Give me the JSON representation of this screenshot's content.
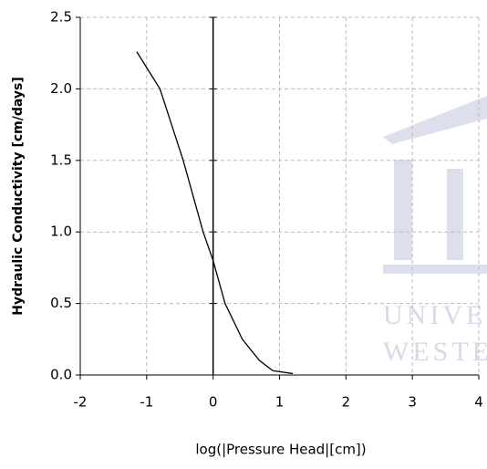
{
  "chart_data": {
    "type": "line",
    "x_label": "log(|Pressure Head|[cm])",
    "y_label": "Hydraulic Conductivity [cm/days]",
    "x": [
      -1.15,
      -0.8,
      -0.45,
      -0.15,
      0,
      0.18,
      0.44,
      0.7,
      0.9,
      1.2
    ],
    "values": [
      2.26,
      2.0,
      1.5,
      1.0,
      0.8,
      0.5,
      0.25,
      0.1,
      0.03,
      0.01
    ],
    "color": "#000000",
    "xlim": [
      -2,
      4
    ],
    "xticks": [
      -2,
      -1,
      0,
      1,
      2,
      3,
      4
    ],
    "ylim": [
      0,
      2.5
    ],
    "yticks": [
      {
        "value": 0,
        "label": "0.0"
      },
      0.5,
      {
        "value": 1,
        "label": "1.0"
      },
      1.5,
      {
        "value": 2,
        "label": "2.0"
      },
      2.5
    ],
    "grid": true,
    "watermark": [
      "UNIVE",
      "WESTE"
    ]
  }
}
